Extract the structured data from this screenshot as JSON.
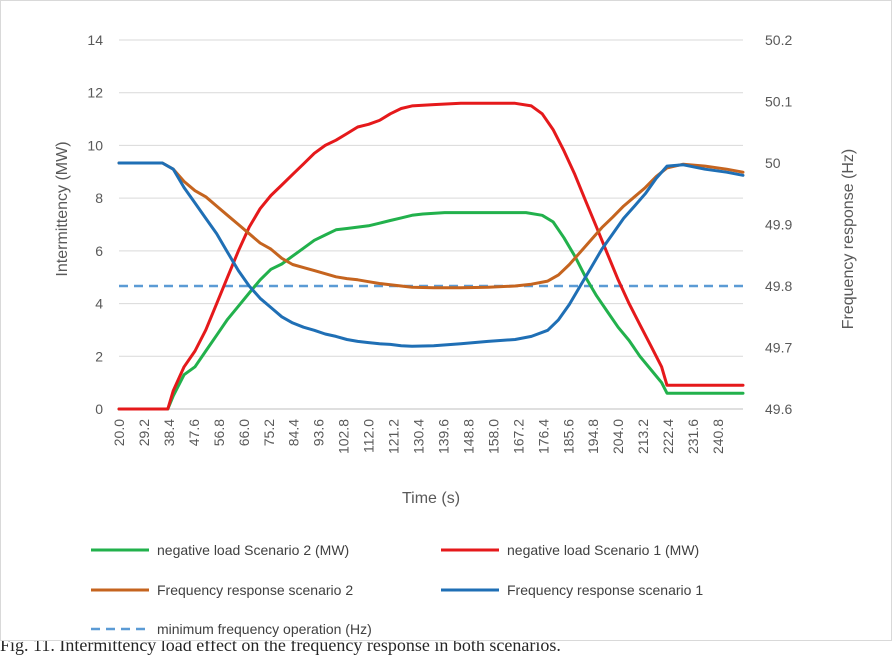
{
  "chart_data": {
    "type": "line",
    "xlabel": "Time (s)",
    "ylabel_left": "Intermittency (MW)",
    "ylabel_right": "Frequency response (Hz)",
    "x_ticks": [
      "20.0",
      "29.2",
      "38.4",
      "47.6",
      "56.8",
      "66.0",
      "75.2",
      "84.4",
      "93.6",
      "102.8",
      "112.0",
      "121.2",
      "130.4",
      "139.6",
      "148.8",
      "158.0",
      "167.2",
      "176.4",
      "185.6",
      "194.8",
      "204.0",
      "213.2",
      "222.4",
      "231.6",
      "240.8"
    ],
    "xlim": [
      20,
      250
    ],
    "ylim_left": [
      0,
      14
    ],
    "ylim_right": [
      49.6,
      50.2
    ],
    "y_ticks_left": [
      "0",
      "2",
      "4",
      "6",
      "8",
      "10",
      "12",
      "14"
    ],
    "y_ticks_right": [
      "49.6",
      "49.7",
      "49.8",
      "49.9",
      "50",
      "50.1",
      "50.2"
    ],
    "grid": true,
    "legend_position": "bottom",
    "series": [
      {
        "name": "negative load Scenario 2 (MW)",
        "axis": "left",
        "color": "#22b14c",
        "points": [
          [
            20,
            0
          ],
          [
            38,
            0
          ],
          [
            40,
            0.5
          ],
          [
            44,
            1.3
          ],
          [
            48,
            1.6
          ],
          [
            52,
            2.2
          ],
          [
            56,
            2.8
          ],
          [
            60,
            3.4
          ],
          [
            64,
            3.9
          ],
          [
            68,
            4.4
          ],
          [
            72,
            4.9
          ],
          [
            76,
            5.3
          ],
          [
            80,
            5.5
          ],
          [
            84,
            5.8
          ],
          [
            88,
            6.1
          ],
          [
            92,
            6.4
          ],
          [
            96,
            6.6
          ],
          [
            100,
            6.8
          ],
          [
            104,
            6.85
          ],
          [
            108,
            6.9
          ],
          [
            112,
            6.95
          ],
          [
            116,
            7.05
          ],
          [
            120,
            7.15
          ],
          [
            124,
            7.25
          ],
          [
            128,
            7.35
          ],
          [
            132,
            7.4
          ],
          [
            140,
            7.45
          ],
          [
            150,
            7.45
          ],
          [
            160,
            7.45
          ],
          [
            170,
            7.45
          ],
          [
            176,
            7.35
          ],
          [
            180,
            7.1
          ],
          [
            184,
            6.5
          ],
          [
            188,
            5.8
          ],
          [
            192,
            5.0
          ],
          [
            196,
            4.3
          ],
          [
            200,
            3.7
          ],
          [
            204,
            3.1
          ],
          [
            208,
            2.6
          ],
          [
            212,
            2.0
          ],
          [
            216,
            1.5
          ],
          [
            220,
            1.0
          ],
          [
            222,
            0.6
          ],
          [
            230,
            0.6
          ],
          [
            240,
            0.6
          ],
          [
            250,
            0.6
          ]
        ]
      },
      {
        "name": "negative load Scenario 1 (MW)",
        "axis": "left",
        "color": "#e5191b",
        "points": [
          [
            20,
            0
          ],
          [
            38,
            0
          ],
          [
            40,
            0.7
          ],
          [
            44,
            1.6
          ],
          [
            48,
            2.2
          ],
          [
            52,
            3.0
          ],
          [
            56,
            4.0
          ],
          [
            60,
            5.0
          ],
          [
            64,
            6.0
          ],
          [
            68,
            6.9
          ],
          [
            72,
            7.6
          ],
          [
            76,
            8.1
          ],
          [
            80,
            8.5
          ],
          [
            84,
            8.9
          ],
          [
            88,
            9.3
          ],
          [
            92,
            9.7
          ],
          [
            96,
            10.0
          ],
          [
            100,
            10.2
          ],
          [
            104,
            10.45
          ],
          [
            108,
            10.7
          ],
          [
            112,
            10.8
          ],
          [
            116,
            10.95
          ],
          [
            120,
            11.2
          ],
          [
            124,
            11.4
          ],
          [
            128,
            11.5
          ],
          [
            136,
            11.55
          ],
          [
            146,
            11.6
          ],
          [
            156,
            11.6
          ],
          [
            166,
            11.6
          ],
          [
            172,
            11.5
          ],
          [
            176,
            11.2
          ],
          [
            180,
            10.6
          ],
          [
            184,
            9.8
          ],
          [
            188,
            8.9
          ],
          [
            192,
            7.9
          ],
          [
            196,
            6.9
          ],
          [
            200,
            5.9
          ],
          [
            204,
            4.9
          ],
          [
            208,
            4.0
          ],
          [
            212,
            3.2
          ],
          [
            216,
            2.4
          ],
          [
            220,
            1.6
          ],
          [
            222,
            0.9
          ],
          [
            230,
            0.9
          ],
          [
            240,
            0.9
          ],
          [
            250,
            0.9
          ]
        ]
      },
      {
        "name": "Frequency response scenario 2",
        "axis": "right",
        "color": "#c5641f",
        "points": [
          [
            20,
            50.0
          ],
          [
            36,
            50.0
          ],
          [
            40,
            49.99
          ],
          [
            44,
            49.97
          ],
          [
            48,
            49.955
          ],
          [
            52,
            49.945
          ],
          [
            56,
            49.93
          ],
          [
            60,
            49.915
          ],
          [
            64,
            49.9
          ],
          [
            68,
            49.885
          ],
          [
            72,
            49.87
          ],
          [
            76,
            49.86
          ],
          [
            80,
            49.845
          ],
          [
            84,
            49.835
          ],
          [
            88,
            49.83
          ],
          [
            92,
            49.825
          ],
          [
            96,
            49.82
          ],
          [
            100,
            49.815
          ],
          [
            104,
            49.812
          ],
          [
            108,
            49.81
          ],
          [
            112,
            49.807
          ],
          [
            116,
            49.804
          ],
          [
            120,
            49.802
          ],
          [
            124,
            49.8
          ],
          [
            128,
            49.798
          ],
          [
            136,
            49.797
          ],
          [
            146,
            49.797
          ],
          [
            156,
            49.798
          ],
          [
            166,
            49.8
          ],
          [
            172,
            49.803
          ],
          [
            178,
            49.808
          ],
          [
            182,
            49.818
          ],
          [
            186,
            49.835
          ],
          [
            190,
            49.855
          ],
          [
            194,
            49.875
          ],
          [
            198,
            49.895
          ],
          [
            202,
            49.912
          ],
          [
            206,
            49.93
          ],
          [
            210,
            49.945
          ],
          [
            214,
            49.96
          ],
          [
            218,
            49.978
          ],
          [
            222,
            49.992
          ],
          [
            228,
            49.998
          ],
          [
            236,
            49.995
          ],
          [
            244,
            49.99
          ],
          [
            250,
            49.985
          ]
        ]
      },
      {
        "name": "Frequency response scenario 1",
        "axis": "right",
        "color": "#1f6fb5",
        "points": [
          [
            20,
            50.0
          ],
          [
            36,
            50.0
          ],
          [
            40,
            49.99
          ],
          [
            44,
            49.96
          ],
          [
            48,
            49.935
          ],
          [
            52,
            49.91
          ],
          [
            56,
            49.885
          ],
          [
            60,
            49.855
          ],
          [
            64,
            49.825
          ],
          [
            68,
            49.8
          ],
          [
            72,
            49.78
          ],
          [
            76,
            49.765
          ],
          [
            80,
            49.75
          ],
          [
            84,
            49.74
          ],
          [
            88,
            49.733
          ],
          [
            92,
            49.728
          ],
          [
            96,
            49.722
          ],
          [
            100,
            49.718
          ],
          [
            104,
            49.713
          ],
          [
            108,
            49.71
          ],
          [
            112,
            49.708
          ],
          [
            116,
            49.706
          ],
          [
            120,
            49.705
          ],
          [
            124,
            49.703
          ],
          [
            128,
            49.702
          ],
          [
            136,
            49.703
          ],
          [
            146,
            49.706
          ],
          [
            156,
            49.71
          ],
          [
            166,
            49.713
          ],
          [
            172,
            49.718
          ],
          [
            178,
            49.728
          ],
          [
            182,
            49.745
          ],
          [
            186,
            49.77
          ],
          [
            190,
            49.8
          ],
          [
            194,
            49.83
          ],
          [
            198,
            49.86
          ],
          [
            202,
            49.885
          ],
          [
            206,
            49.91
          ],
          [
            210,
            49.93
          ],
          [
            214,
            49.95
          ],
          [
            218,
            49.975
          ],
          [
            222,
            49.995
          ],
          [
            228,
            49.997
          ],
          [
            236,
            49.99
          ],
          [
            244,
            49.985
          ],
          [
            250,
            49.98
          ]
        ]
      },
      {
        "name": "minimum frequency operation (Hz)",
        "axis": "right",
        "color": "#5b9bd5",
        "dashed": true,
        "points": [
          [
            20,
            49.8
          ],
          [
            250,
            49.8
          ]
        ]
      }
    ]
  },
  "caption_fragment": "Fig. 11. Intermittency load effect on the frequency response in both scenarios."
}
